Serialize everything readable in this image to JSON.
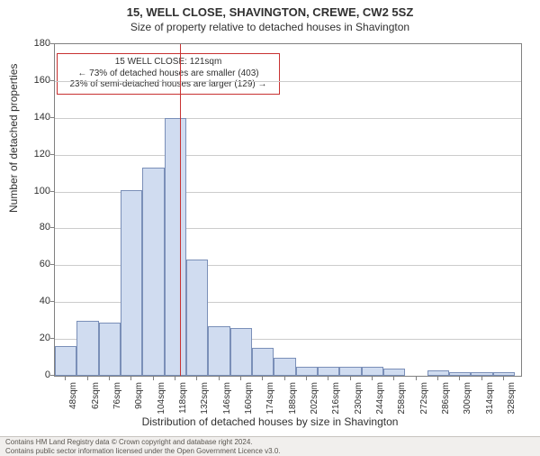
{
  "title": "15, WELL CLOSE, SHAVINGTON, CREWE, CW2 5SZ",
  "subtitle": "Size of property relative to detached houses in Shavington",
  "ylabel": "Number of detached properties",
  "xlabel": "Distribution of detached houses by size in Shavington",
  "chart": {
    "type": "histogram",
    "ylim": [
      0,
      180
    ],
    "ytick_step": 20,
    "xlim": [
      41,
      339
    ],
    "xtick_start": 48,
    "xtick_step": 14,
    "xtick_count": 21,
    "xtick_suffix": "sqm",
    "background_color": "#ffffff",
    "grid_color": "#cccccc",
    "axis_color": "#808080",
    "bar_fill": "#d0dcf0",
    "bar_border": "#7a8fb8",
    "bar_width_sqm": 14,
    "bins_start": 41,
    "values": [
      16,
      30,
      29,
      101,
      113,
      140,
      63,
      27,
      26,
      15,
      10,
      5,
      5,
      5,
      5,
      4,
      0,
      3,
      2,
      2,
      2
    ],
    "marker_sqm": 121,
    "marker_color": "#c83232",
    "annotation": {
      "line1": "15 WELL CLOSE: 121sqm",
      "line2": "← 73% of detached houses are smaller (403)",
      "line3": "23% of semi-detached houses are larger (129) →",
      "border_color": "#c83232",
      "bg": "#ffffff"
    }
  },
  "footer": {
    "line1": "Contains HM Land Registry data © Crown copyright and database right 2024.",
    "line2": "Contains public sector information licensed under the Open Government Licence v3.0."
  }
}
